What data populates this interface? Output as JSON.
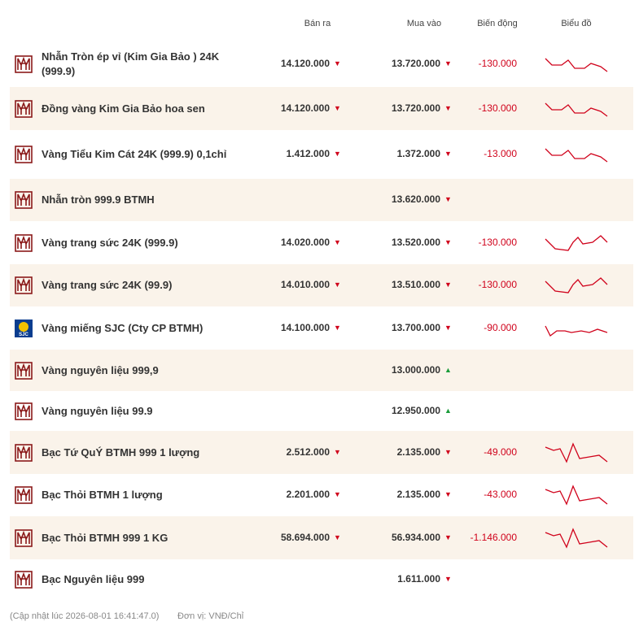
{
  "header": {
    "sell": "Bán ra",
    "buy": "Mua vào",
    "change": "Biến động",
    "chart": "Biểu đồ"
  },
  "rows": [
    {
      "name": "Nhẫn Tròn ép vỉ (Kim Gia Bảo ) 24K (999.9)",
      "sell": "14.120.000",
      "sell_arrow": "▼",
      "buy": "13.720.000",
      "buy_arrow": "▼",
      "change": "-130.000"
    },
    {
      "name": "Đồng vàng Kim Gia Bảo hoa sen",
      "sell": "14.120.000",
      "sell_arrow": "▼",
      "buy": "13.720.000",
      "buy_arrow": "▼",
      "change": "-130.000"
    },
    {
      "name": "Vàng Tiểu Kim Cát 24K (999.9) 0,1chỉ",
      "sell": "1.412.000",
      "sell_arrow": "▼",
      "buy": "1.372.000",
      "buy_arrow": "▼",
      "change": "-13.000"
    },
    {
      "name": "Nhẫn tròn 999.9 BTMH",
      "buy": "13.620.000",
      "buy_arrow": "▼"
    },
    {
      "name": "Vàng trang sức 24K (999.9)",
      "sell": "14.020.000",
      "sell_arrow": "▼",
      "buy": "13.520.000",
      "buy_arrow": "▼",
      "change": "-130.000"
    },
    {
      "name": "Vàng trang sức 24K (99.9)",
      "sell": "14.010.000",
      "sell_arrow": "▼",
      "buy": "13.510.000",
      "buy_arrow": "▼",
      "change": "-130.000"
    },
    {
      "name": "Vàng miếng SJC (Cty CP BTMH)",
      "logo_text": "SJC",
      "sell": "14.100.000",
      "sell_arrow": "▼",
      "buy": "13.700.000",
      "buy_arrow": "▼",
      "change": "-90.000"
    },
    {
      "name": "Vàng nguyên liệu 999,9",
      "buy": "13.000.000",
      "buy_arrow": "▲"
    },
    {
      "name": "Vàng nguyên liệu 99.9",
      "buy": "12.950.000",
      "buy_arrow": "▲"
    },
    {
      "name": "Bạc Tứ QuÝ BTMH 999 1 lượng",
      "sell": "2.512.000",
      "sell_arrow": "▼",
      "buy": "2.135.000",
      "buy_arrow": "▼",
      "change": "-49.000"
    },
    {
      "name": "Bạc Thỏi BTMH 1 lượng",
      "sell": "2.201.000",
      "sell_arrow": "▼",
      "buy": "2.135.000",
      "buy_arrow": "▼",
      "change": "-43.000"
    },
    {
      "name": "Bạc Thỏi BTMH 999 1 KG",
      "sell": "58.694.000",
      "sell_arrow": "▼",
      "buy": "56.934.000",
      "buy_arrow": "▼",
      "change": "-1.146.000"
    },
    {
      "name": "Bạc Nguyên liệu 999",
      "buy": "1.611.000",
      "buy_arrow": "▼"
    }
  ],
  "footer": {
    "updated": "(Cập nhật lúc 2026-08-01 16:41:47.0)",
    "unit": "Đơn vị: VNĐ/Chỉ"
  }
}
